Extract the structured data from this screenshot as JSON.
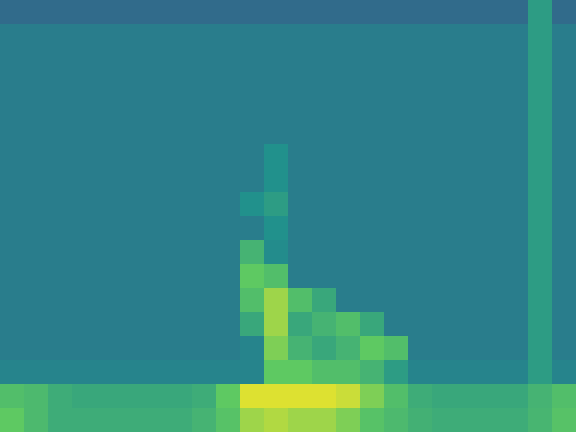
{
  "chart_data": {
    "type": "heatmap",
    "tick_labels": false,
    "color_range": [
      0,
      1
    ],
    "cells": [
      [
        0.35,
        0.35,
        0.35,
        0.35,
        0.35,
        0.35,
        0.35,
        0.35,
        0.35,
        0.35,
        0.35,
        0.35,
        0.35,
        0.35,
        0.35,
        0.35,
        0.35,
        0.35,
        0.35,
        0.35,
        0.35,
        0.35,
        0.55,
        0.35
      ],
      [
        0.42,
        0.42,
        0.42,
        0.42,
        0.42,
        0.42,
        0.42,
        0.42,
        0.42,
        0.42,
        0.42,
        0.42,
        0.42,
        0.42,
        0.42,
        0.42,
        0.42,
        0.42,
        0.42,
        0.42,
        0.42,
        0.42,
        0.55,
        0.42
      ],
      [
        0.42,
        0.42,
        0.42,
        0.42,
        0.42,
        0.42,
        0.42,
        0.42,
        0.42,
        0.42,
        0.42,
        0.42,
        0.42,
        0.42,
        0.42,
        0.42,
        0.42,
        0.42,
        0.42,
        0.42,
        0.42,
        0.42,
        0.55,
        0.42
      ],
      [
        0.42,
        0.42,
        0.42,
        0.42,
        0.42,
        0.42,
        0.42,
        0.42,
        0.42,
        0.42,
        0.42,
        0.42,
        0.42,
        0.42,
        0.42,
        0.42,
        0.42,
        0.42,
        0.42,
        0.42,
        0.42,
        0.42,
        0.55,
        0.42
      ],
      [
        0.42,
        0.42,
        0.42,
        0.42,
        0.42,
        0.42,
        0.42,
        0.42,
        0.42,
        0.42,
        0.42,
        0.42,
        0.42,
        0.42,
        0.42,
        0.42,
        0.42,
        0.42,
        0.42,
        0.42,
        0.42,
        0.42,
        0.55,
        0.42
      ],
      [
        0.42,
        0.42,
        0.42,
        0.42,
        0.42,
        0.42,
        0.42,
        0.42,
        0.42,
        0.42,
        0.42,
        0.42,
        0.42,
        0.42,
        0.42,
        0.42,
        0.42,
        0.42,
        0.42,
        0.42,
        0.42,
        0.42,
        0.55,
        0.42
      ],
      [
        0.42,
        0.42,
        0.42,
        0.42,
        0.42,
        0.42,
        0.42,
        0.42,
        0.42,
        0.42,
        0.42,
        0.5,
        0.42,
        0.42,
        0.42,
        0.42,
        0.42,
        0.42,
        0.42,
        0.42,
        0.42,
        0.42,
        0.55,
        0.42
      ],
      [
        0.42,
        0.42,
        0.42,
        0.42,
        0.42,
        0.42,
        0.42,
        0.42,
        0.42,
        0.42,
        0.42,
        0.5,
        0.42,
        0.42,
        0.42,
        0.42,
        0.42,
        0.42,
        0.42,
        0.42,
        0.42,
        0.42,
        0.55,
        0.42
      ],
      [
        0.42,
        0.42,
        0.42,
        0.42,
        0.42,
        0.42,
        0.42,
        0.42,
        0.42,
        0.42,
        0.5,
        0.55,
        0.42,
        0.42,
        0.42,
        0.42,
        0.42,
        0.42,
        0.42,
        0.42,
        0.42,
        0.42,
        0.55,
        0.42
      ],
      [
        0.42,
        0.42,
        0.42,
        0.42,
        0.42,
        0.42,
        0.42,
        0.42,
        0.42,
        0.42,
        0.42,
        0.5,
        0.42,
        0.42,
        0.42,
        0.42,
        0.42,
        0.42,
        0.42,
        0.42,
        0.42,
        0.42,
        0.55,
        0.42
      ],
      [
        0.42,
        0.42,
        0.42,
        0.42,
        0.42,
        0.42,
        0.42,
        0.42,
        0.42,
        0.42,
        0.65,
        0.48,
        0.42,
        0.42,
        0.42,
        0.42,
        0.42,
        0.42,
        0.42,
        0.42,
        0.42,
        0.42,
        0.55,
        0.42
      ],
      [
        0.42,
        0.42,
        0.42,
        0.42,
        0.42,
        0.42,
        0.42,
        0.42,
        0.42,
        0.42,
        0.75,
        0.7,
        0.42,
        0.42,
        0.42,
        0.42,
        0.42,
        0.42,
        0.42,
        0.42,
        0.42,
        0.42,
        0.55,
        0.42
      ],
      [
        0.42,
        0.42,
        0.42,
        0.42,
        0.42,
        0.42,
        0.42,
        0.42,
        0.42,
        0.42,
        0.7,
        0.85,
        0.7,
        0.6,
        0.42,
        0.42,
        0.42,
        0.42,
        0.42,
        0.42,
        0.42,
        0.42,
        0.55,
        0.42
      ],
      [
        0.42,
        0.42,
        0.42,
        0.42,
        0.42,
        0.42,
        0.42,
        0.42,
        0.42,
        0.42,
        0.6,
        0.85,
        0.6,
        0.65,
        0.7,
        0.6,
        0.42,
        0.42,
        0.42,
        0.42,
        0.42,
        0.42,
        0.55,
        0.42
      ],
      [
        0.42,
        0.42,
        0.42,
        0.42,
        0.42,
        0.42,
        0.42,
        0.42,
        0.42,
        0.42,
        0.45,
        0.8,
        0.65,
        0.6,
        0.65,
        0.75,
        0.7,
        0.42,
        0.42,
        0.42,
        0.42,
        0.42,
        0.55,
        0.42
      ],
      [
        0.45,
        0.45,
        0.45,
        0.45,
        0.45,
        0.45,
        0.45,
        0.45,
        0.45,
        0.45,
        0.45,
        0.75,
        0.75,
        0.7,
        0.7,
        0.65,
        0.55,
        0.45,
        0.45,
        0.45,
        0.45,
        0.45,
        0.55,
        0.45
      ],
      [
        0.7,
        0.68,
        0.62,
        0.6,
        0.6,
        0.6,
        0.6,
        0.6,
        0.62,
        0.75,
        0.95,
        0.95,
        0.95,
        0.95,
        0.92,
        0.8,
        0.7,
        0.62,
        0.6,
        0.6,
        0.6,
        0.6,
        0.65,
        0.7
      ],
      [
        0.75,
        0.68,
        0.62,
        0.62,
        0.62,
        0.62,
        0.62,
        0.62,
        0.65,
        0.72,
        0.85,
        0.88,
        0.85,
        0.85,
        0.8,
        0.72,
        0.68,
        0.64,
        0.62,
        0.62,
        0.62,
        0.62,
        0.66,
        0.72
      ]
    ]
  }
}
